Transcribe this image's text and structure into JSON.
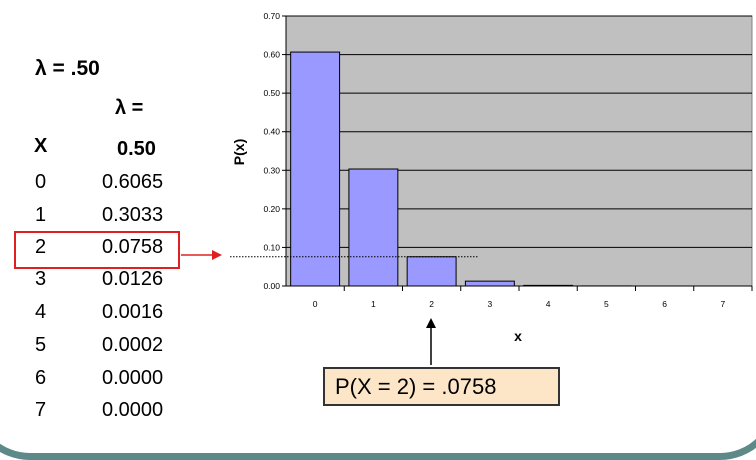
{
  "left_panel": {
    "lambda_title": "λ = .50",
    "table_header_lambda": "λ =",
    "table_header_x": "X",
    "table_header_value": "0.50",
    "rows": [
      {
        "x": "0",
        "p": "0.6065"
      },
      {
        "x": "1",
        "p": "0.3033"
      },
      {
        "x": "2",
        "p": "0.0758"
      },
      {
        "x": "3",
        "p": "0.0126"
      },
      {
        "x": "4",
        "p": "0.0016"
      },
      {
        "x": "5",
        "p": "0.0002"
      },
      {
        "x": "6",
        "p": "0.0000"
      },
      {
        "x": "7",
        "p": "0.0000"
      }
    ],
    "highlighted_row": 2
  },
  "callout": {
    "text": "P(X = 2) = .0758"
  },
  "colors": {
    "bar_fill": "#9999ff",
    "plot_background": "#c0c0c0",
    "highlight_border": "#e02020",
    "callout_background": "#fde6c7",
    "frame": "#5d8a88"
  },
  "chart_data": {
    "type": "bar",
    "categories": [
      "0",
      "1",
      "2",
      "3",
      "4",
      "5",
      "6",
      "7"
    ],
    "values": [
      0.6065,
      0.3033,
      0.0758,
      0.0126,
      0.0016,
      0.0002,
      0.0,
      0.0
    ],
    "xlabel": "x",
    "ylabel": "P(x)",
    "ylim": [
      0,
      0.7
    ],
    "yticks": [
      "0.00",
      "0.10",
      "0.20",
      "0.30",
      "0.40",
      "0.50",
      "0.60",
      "0.70"
    ],
    "grid": true,
    "reference_line_value": 0.0758
  }
}
